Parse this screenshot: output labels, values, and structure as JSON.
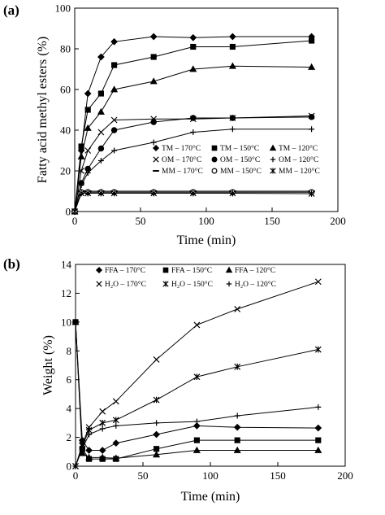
{
  "chart_data": [
    {
      "type": "line",
      "panel_label": "(a)",
      "xlabel": "Time (min)",
      "ylabel": "Fatty acid methyl esters (%)",
      "xlim": [
        0,
        200
      ],
      "ylim": [
        0,
        100
      ],
      "xticks": [
        0,
        50,
        100,
        150,
        200
      ],
      "yticks": [
        0,
        20,
        40,
        60,
        80,
        100
      ],
      "grid": false,
      "legend_position": "center-right",
      "legend_columns": 3,
      "series": [
        {
          "name": "TM – 170°C",
          "marker": "diamond",
          "x": [
            0,
            5,
            10,
            20,
            30,
            60,
            90,
            120,
            180
          ],
          "y": [
            0,
            30,
            58,
            76,
            83.5,
            86,
            85.5,
            86,
            86
          ]
        },
        {
          "name": "TM – 150°C",
          "marker": "square",
          "x": [
            0,
            5,
            10,
            20,
            30,
            60,
            90,
            120,
            180
          ],
          "y": [
            0,
            32,
            50,
            58,
            72,
            76,
            81,
            81,
            84
          ]
        },
        {
          "name": "TM – 120°C",
          "marker": "triangle",
          "x": [
            0,
            5,
            10,
            20,
            30,
            60,
            90,
            120,
            180
          ],
          "y": [
            0,
            27,
            41,
            49,
            60,
            64,
            70,
            71.5,
            71
          ]
        },
        {
          "name": "OM – 170°C",
          "marker": "x",
          "x": [
            0,
            5,
            10,
            20,
            30,
            60,
            90,
            120,
            180
          ],
          "y": [
            0,
            20,
            30,
            39,
            45,
            45.5,
            45.5,
            46,
            47
          ]
        },
        {
          "name": "OM – 150°C",
          "marker": "circle",
          "x": [
            0,
            5,
            10,
            20,
            30,
            60,
            90,
            120,
            180
          ],
          "y": [
            0,
            14,
            21,
            31,
            40,
            44,
            46,
            46,
            46.5
          ]
        },
        {
          "name": "OM – 120°C",
          "marker": "plus",
          "x": [
            0,
            5,
            10,
            20,
            30,
            60,
            90,
            120,
            180
          ],
          "y": [
            0,
            13,
            19,
            25,
            30,
            34,
            39,
            40.5,
            40.5
          ]
        },
        {
          "name": "MM – 170°C",
          "marker": "dash",
          "x": [
            0,
            5,
            10,
            20,
            30,
            60,
            90,
            120,
            180
          ],
          "y": [
            0,
            10,
            10,
            10,
            10,
            10,
            10,
            10,
            10
          ]
        },
        {
          "name": "MM – 150°C",
          "marker": "open-circle",
          "x": [
            0,
            5,
            10,
            20,
            30,
            60,
            90,
            120,
            180
          ],
          "y": [
            0,
            9.5,
            9.5,
            9.5,
            9.5,
            9.5,
            9.5,
            9.5,
            9.5
          ]
        },
        {
          "name": "MM – 120°C",
          "marker": "asterisk",
          "x": [
            0,
            5,
            10,
            20,
            30,
            60,
            90,
            120,
            180
          ],
          "y": [
            0,
            9,
            9,
            9,
            9,
            9,
            9,
            9,
            8.8
          ]
        }
      ]
    },
    {
      "type": "line",
      "panel_label": "(b)",
      "xlabel": "Time (min)",
      "ylabel": "Weight (%)",
      "xlim": [
        0,
        200
      ],
      "ylim": [
        0,
        14
      ],
      "xticks": [
        0,
        50,
        100,
        150,
        200
      ],
      "yticks": [
        0,
        2,
        4,
        6,
        8,
        10,
        12,
        14
      ],
      "grid": false,
      "legend_position": "top-left",
      "legend_columns": 3,
      "series": [
        {
          "name": "FFA – 170°C",
          "marker": "diamond",
          "x": [
            0,
            5,
            10,
            20,
            30,
            60,
            90,
            120,
            180
          ],
          "y": [
            10,
            1.8,
            1.1,
            1.1,
            1.6,
            2.2,
            2.8,
            2.7,
            2.65
          ]
        },
        {
          "name": "FFA – 150°C",
          "marker": "square",
          "x": [
            0,
            5,
            10,
            20,
            30,
            60,
            90,
            120,
            180
          ],
          "y": [
            10,
            1.2,
            0.5,
            0.5,
            0.5,
            1.2,
            1.8,
            1.8,
            1.8
          ]
        },
        {
          "name": "FFA – 120°C",
          "marker": "triangle",
          "x": [
            0,
            5,
            10,
            20,
            30,
            60,
            90,
            120,
            180
          ],
          "y": [
            10,
            0.9,
            0.6,
            0.6,
            0.55,
            0.8,
            1.1,
            1.1,
            1.1
          ]
        },
        {
          "name": "H₂O – 170°C",
          "marker": "x",
          "x": [
            0,
            5,
            10,
            20,
            30,
            60,
            90,
            120,
            180
          ],
          "y": [
            0,
            1.5,
            2.7,
            3.8,
            4.5,
            7.4,
            9.8,
            10.9,
            12.8
          ]
        },
        {
          "name": "H₂O – 150°C",
          "marker": "asterisk",
          "x": [
            0,
            5,
            10,
            20,
            30,
            60,
            90,
            120,
            180
          ],
          "y": [
            0,
            1.4,
            2.5,
            3,
            3.2,
            4.6,
            6.2,
            6.9,
            8.1
          ]
        },
        {
          "name": "H₂O – 120°C",
          "marker": "plus",
          "x": [
            0,
            5,
            10,
            20,
            30,
            60,
            90,
            120,
            180
          ],
          "y": [
            0,
            1.2,
            2.2,
            2.6,
            2.8,
            3,
            3.1,
            3.5,
            4.1
          ]
        }
      ]
    }
  ]
}
